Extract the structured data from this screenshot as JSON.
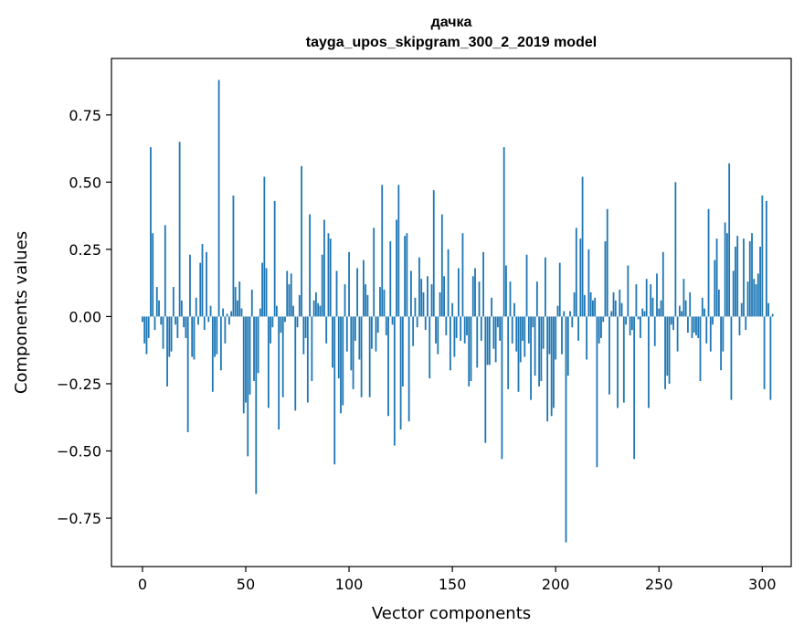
{
  "chart_data": {
    "type": "bar",
    "title": "дачка",
    "subtitle": "tayga_upos_skipgram_300_2_2019 model",
    "xlabel": "Vector components",
    "ylabel": "Components values",
    "xlim": [
      -15,
      314
    ],
    "ylim": [
      -0.93,
      0.96
    ],
    "xticks": [
      0,
      50,
      100,
      150,
      200,
      250,
      300
    ],
    "xtick_labels": [
      "0",
      "50",
      "100",
      "150",
      "200",
      "250",
      "300"
    ],
    "yticks": [
      0.75,
      0.5,
      0.25,
      0.0,
      -0.25,
      -0.5,
      -0.75
    ],
    "ytick_labels": [
      "0.75",
      "0.50",
      "0.25",
      "0.00",
      "−0.25",
      "−0.50",
      "−0.75"
    ],
    "bar_color": "#1f77b4",
    "values": [
      -0.02,
      -0.1,
      -0.14,
      -0.08,
      0.63,
      0.31,
      -0.05,
      0.11,
      0.06,
      -0.03,
      -0.12,
      0.34,
      -0.26,
      -0.15,
      -0.13,
      0.11,
      -0.03,
      -0.08,
      0.65,
      0.06,
      -0.04,
      -0.08,
      -0.43,
      0.23,
      -0.15,
      -0.16,
      0.07,
      -0.03,
      0.2,
      0.27,
      -0.05,
      0.24,
      -0.02,
      0.04,
      -0.28,
      -0.15,
      -0.14,
      0.88,
      -0.2,
      0.03,
      -0.1,
      0.01,
      -0.03,
      0.02,
      0.45,
      0.11,
      0.06,
      0.13,
      0.03,
      -0.36,
      -0.32,
      -0.52,
      -0.29,
      0.1,
      -0.24,
      -0.66,
      -0.21,
      0.03,
      0.2,
      0.52,
      0.18,
      -0.34,
      -0.1,
      -0.04,
      0.43,
      0.04,
      -0.42,
      -0.06,
      -0.3,
      -0.02,
      0.17,
      0.12,
      0.16,
      0.04,
      -0.35,
      -0.04,
      0.08,
      0.56,
      -0.14,
      -0.08,
      -0.32,
      0.38,
      -0.24,
      0.06,
      0.09,
      0.05,
      0.04,
      0.23,
      0.36,
      -0.1,
      0.31,
      0.29,
      -0.19,
      -0.55,
      0.17,
      -0.23,
      -0.36,
      -0.33,
      0.12,
      -0.13,
      0.24,
      -0.2,
      -0.27,
      -0.09,
      0.18,
      -0.16,
      -0.3,
      0.21,
      0.12,
      0.08,
      -0.3,
      -0.12,
      0.33,
      -0.13,
      -0.06,
      0.11,
      0.49,
      0.1,
      -0.07,
      -0.37,
      0.28,
      -0.03,
      -0.48,
      0.36,
      0.49,
      -0.42,
      -0.26,
      0.3,
      0.31,
      -0.39,
      0.17,
      -0.11,
      0.07,
      -0.04,
      0.22,
      0.14,
      0.09,
      -0.05,
      0.15,
      -0.23,
      0.12,
      0.47,
      -0.1,
      -0.14,
      0.09,
      0.38,
      0.15,
      -0.07,
      0.25,
      -0.2,
      0.05,
      -0.15,
      -0.08,
      0.18,
      -0.09,
      0.31,
      -0.1,
      -0.07,
      -0.26,
      -0.24,
      0.15,
      0.18,
      -0.19,
      0.13,
      -0.09,
      0.24,
      -0.47,
      -0.18,
      -0.18,
      0.07,
      -0.12,
      -0.17,
      -0.04,
      -0.09,
      -0.53,
      0.63,
      0.19,
      -0.27,
      0.13,
      -0.1,
      0.05,
      -0.13,
      -0.28,
      -0.17,
      -0.09,
      -0.15,
      0.23,
      -0.1,
      -0.31,
      -0.04,
      -0.22,
      0.13,
      -0.26,
      -0.24,
      -0.12,
      0.22,
      -0.39,
      -0.14,
      -0.37,
      -0.34,
      -0.16,
      0.04,
      0.2,
      -0.14,
      0.02,
      -0.84,
      -0.22,
      0.02,
      -0.04,
      0.09,
      0.33,
      -0.09,
      0.29,
      0.52,
      0.08,
      -0.16,
      0.25,
      0.09,
      0.06,
      0.07,
      -0.56,
      -0.1,
      -0.08,
      -0.02,
      0.28,
      0.4,
      -0.29,
      0.02,
      0.09,
      0.06,
      -0.34,
      0.1,
      0.05,
      -0.32,
      -0.03,
      0.19,
      -0.07,
      -0.05,
      -0.53,
      0.12,
      -0.01,
      -0.08,
      0.03,
      0.02,
      0.14,
      -0.34,
      0.12,
      0.07,
      -0.11,
      0.16,
      0.03,
      0.06,
      0.24,
      -0.27,
      -0.22,
      -0.25,
      -0.03,
      -0.05,
      0.5,
      -0.13,
      0.04,
      0.02,
      0.14,
      0.06,
      -0.06,
      0.09,
      -0.08,
      -0.06,
      -0.07,
      -0.08,
      -0.24,
      0.07,
      0.03,
      -0.1,
      0.4,
      -0.13,
      -0.03,
      0.21,
      0.29,
      0.1,
      -0.2,
      -0.13,
      0.35,
      0.31,
      0.57,
      -0.31,
      0.17,
      0.26,
      0.3,
      -0.07,
      0.05,
      0.29,
      -0.05,
      0.13,
      0.28,
      0.31,
      0.14,
      0.12,
      0.16,
      0.26,
      0.45,
      -0.27,
      0.43,
      0.05,
      -0.31,
      0.01
    ]
  }
}
